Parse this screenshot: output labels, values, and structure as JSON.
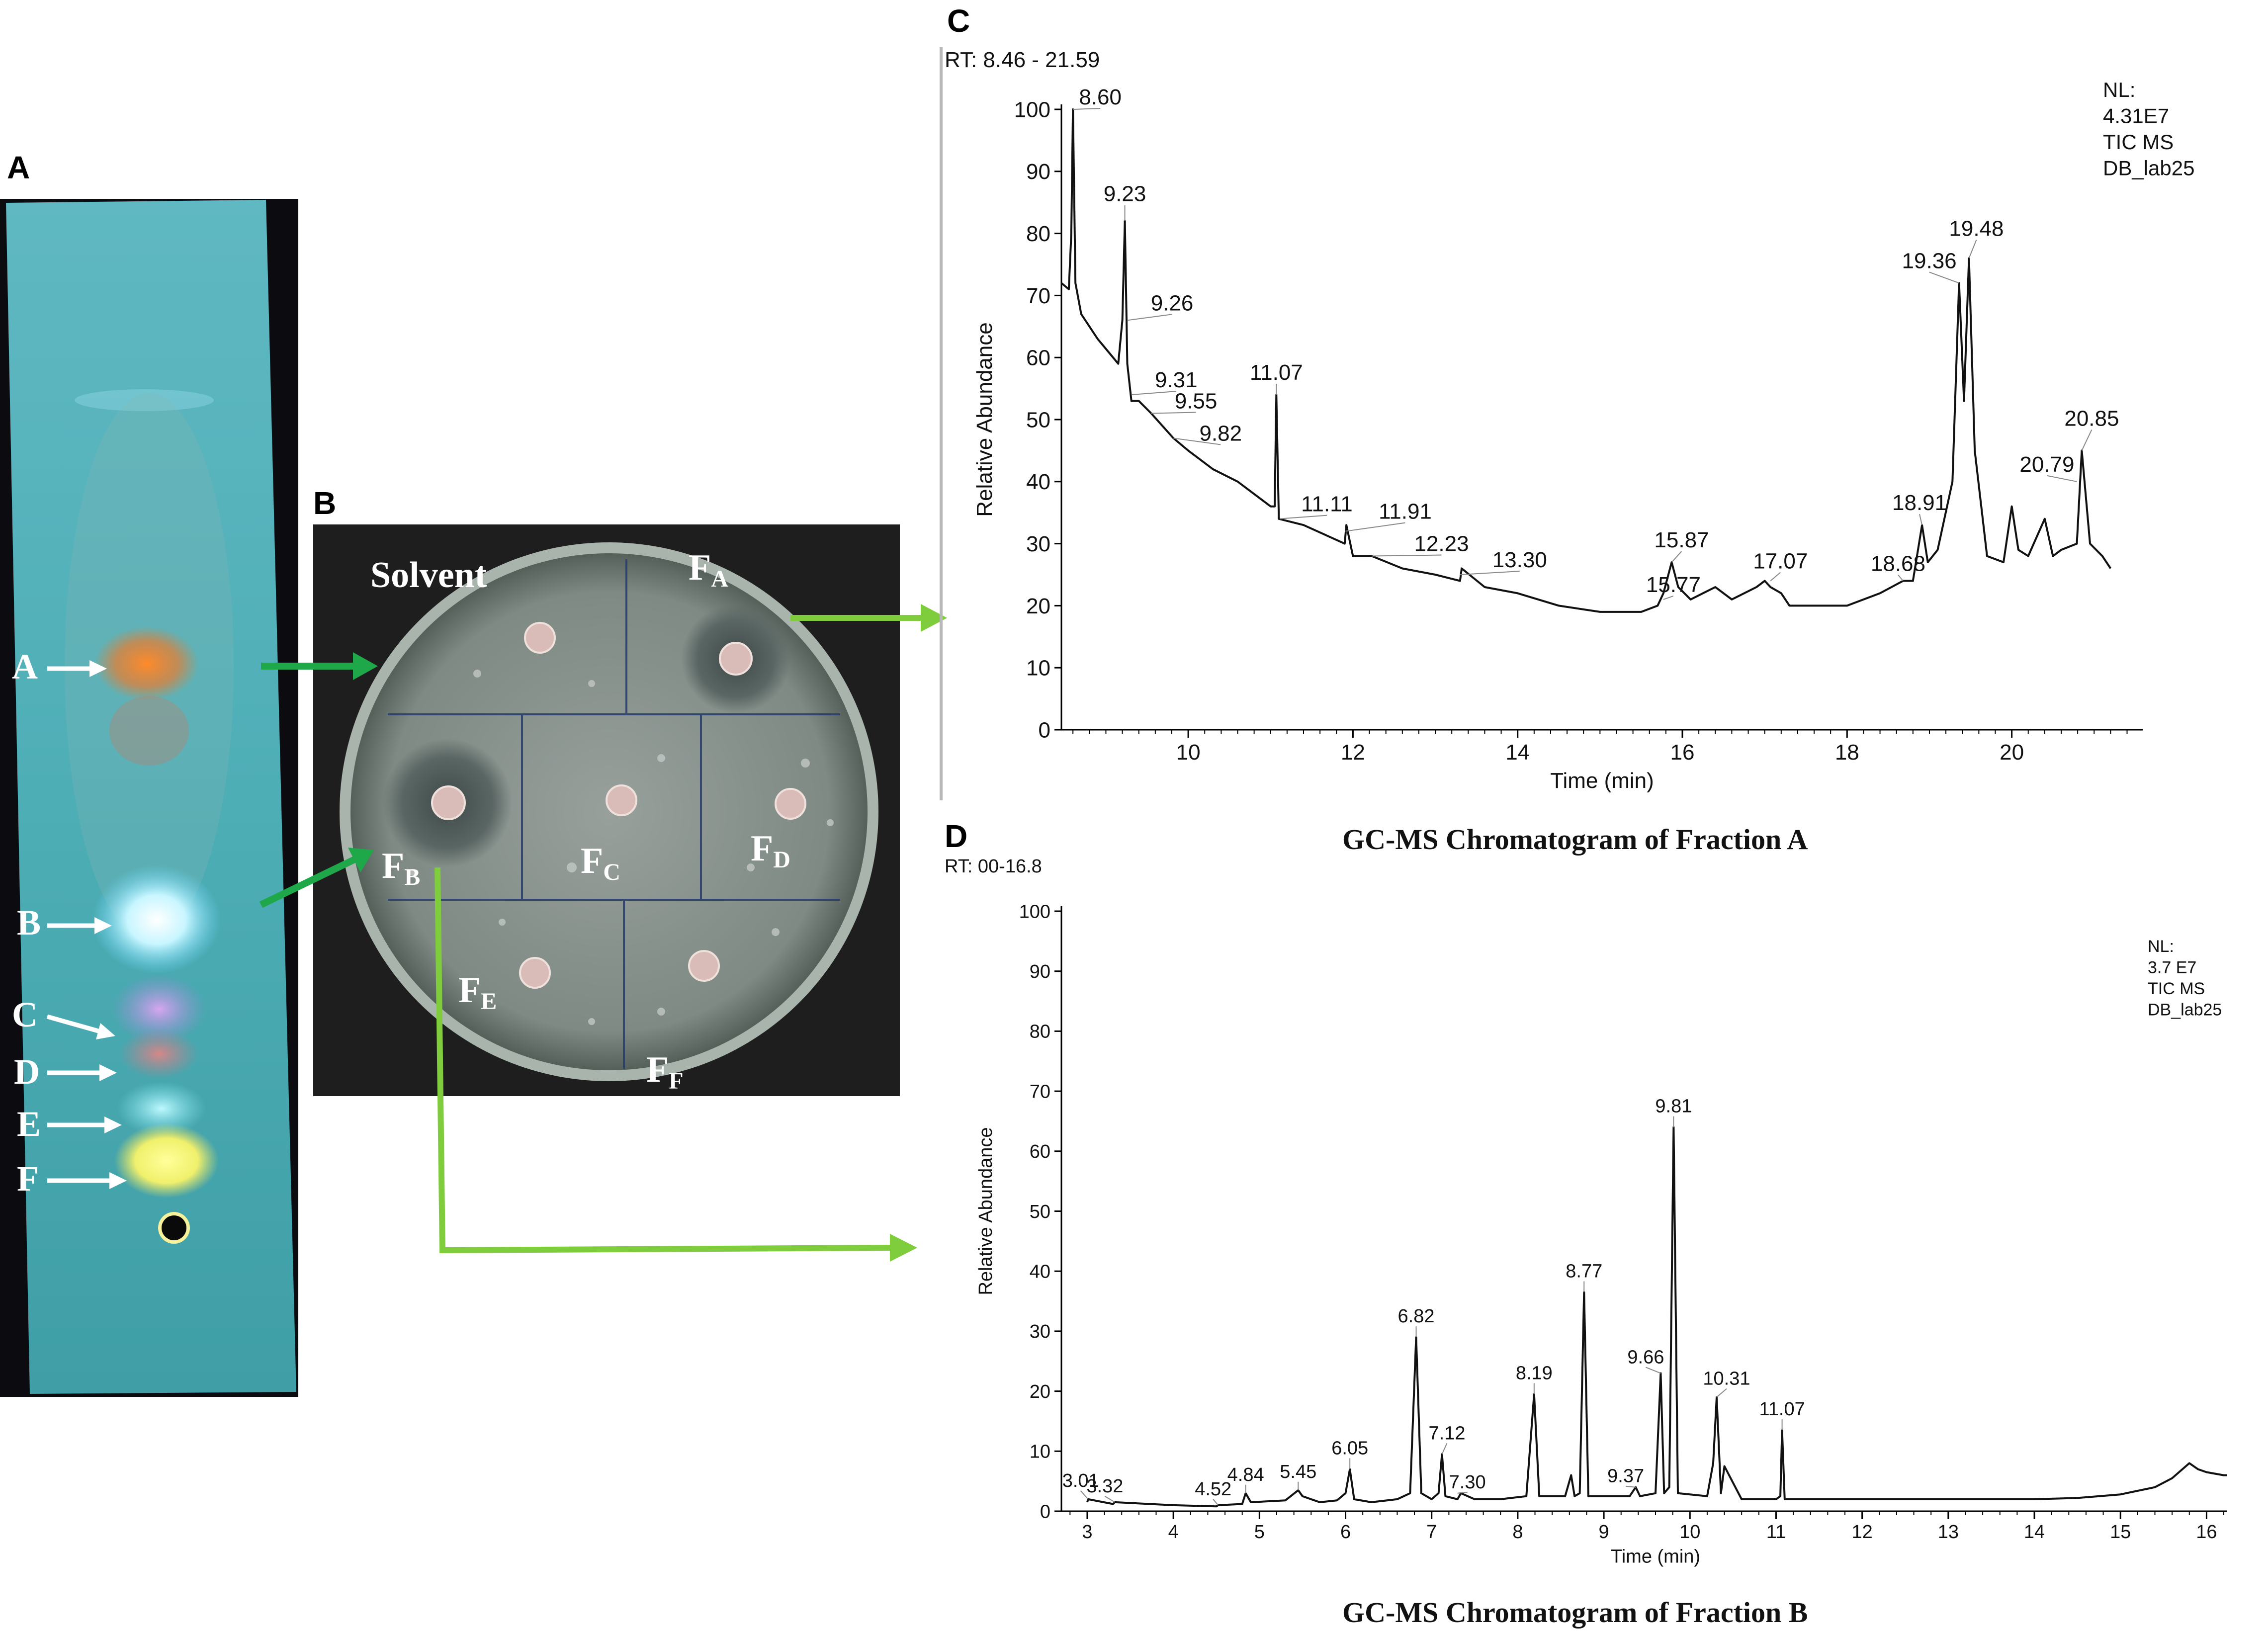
{
  "panels": {
    "a": "A",
    "b": "B",
    "c": "C",
    "d": "D"
  },
  "tlc": {
    "spots": [
      "A",
      "B",
      "C",
      "D",
      "E",
      "F"
    ],
    "colors": {
      "background": "#4fb2b8",
      "spot_a": "#e8843a",
      "spot_b": "#e8ffff",
      "spot_c": "#c89ae8",
      "spot_d": "#d08a8a",
      "spot_e": "#8ef0f4",
      "spot_f": "#f3f37a"
    }
  },
  "plate": {
    "solvent_label": "Solvent",
    "fractions": [
      {
        "main": "F",
        "sub": "A"
      },
      {
        "main": "F",
        "sub": "B"
      },
      {
        "main": "F",
        "sub": "C"
      },
      {
        "main": "F",
        "sub": "D"
      },
      {
        "main": "F",
        "sub": "E"
      },
      {
        "main": "F",
        "sub": "F"
      }
    ],
    "colors": {
      "agar": "#8a938e",
      "dish_rim": "#c6d0c6",
      "backdrop": "#1c1c1c"
    }
  },
  "arrows": {
    "dark_green": "#1ea84a",
    "light_green": "#7fcd3c"
  },
  "captions": {
    "c": "GC-MS Chromatogram of Fraction A",
    "d": "GC-MS Chromatogram of Fraction B"
  },
  "chart_data": [
    {
      "type": "line",
      "id": "fraction-a",
      "rt_label": "RT: 8.46 - 21.59",
      "info": [
        "NL:",
        "4.31E7",
        "TIC  MS",
        "DB_lab25"
      ],
      "xlabel": "Time (min)",
      "ylabel": "Relative Abundance",
      "xlim": [
        8.46,
        21.59
      ],
      "ylim": [
        0,
        100
      ],
      "xticks": [
        10,
        12,
        14,
        16,
        18,
        20
      ],
      "yticks": [
        0,
        10,
        20,
        30,
        40,
        50,
        60,
        70,
        80,
        90,
        100
      ],
      "series": [
        {
          "x": [
            8.46,
            8.55,
            8.58,
            8.6,
            8.63,
            8.7,
            8.9,
            9.15,
            9.2,
            9.23,
            9.26,
            9.31,
            9.4,
            9.55,
            9.82,
            10.0,
            10.3,
            10.6,
            11.0,
            11.05,
            11.07,
            11.1,
            11.4,
            11.9,
            11.92,
            12.0,
            12.23,
            12.6,
            13.0,
            13.3,
            13.32,
            13.6,
            14.0,
            14.5,
            15.0,
            15.5,
            15.7,
            15.77,
            15.87,
            15.95,
            16.1,
            16.4,
            16.6,
            16.9,
            17.0,
            17.07,
            17.2,
            17.3,
            17.6,
            18.0,
            18.4,
            18.68,
            18.8,
            18.91,
            18.98,
            19.1,
            19.28,
            19.36,
            19.42,
            19.48,
            19.55,
            19.7,
            19.9,
            20.0,
            20.08,
            20.2,
            20.4,
            20.5,
            20.6,
            20.79,
            20.85,
            20.95,
            21.1,
            21.2
          ],
          "y": [
            72,
            71,
            80,
            100,
            72,
            67,
            63,
            59,
            66,
            82,
            59,
            53,
            53,
            51,
            47,
            45,
            42,
            40,
            36,
            36,
            54,
            34,
            33,
            30,
            33,
            28,
            28,
            26,
            25,
            24,
            26,
            23,
            22,
            20,
            19,
            19,
            20,
            22,
            27,
            23,
            21,
            23,
            21,
            23,
            24,
            23,
            22,
            20,
            20,
            20,
            22,
            24,
            24,
            33,
            27,
            29,
            40,
            72,
            53,
            76,
            45,
            28,
            27,
            36,
            29,
            28,
            34,
            28,
            29,
            30,
            45,
            30,
            28,
            26
          ]
        }
      ],
      "peak_labels": [
        {
          "label": "8.60",
          "x": 8.6,
          "y": 100
        },
        {
          "label": "9.23",
          "x": 9.23,
          "y": 82
        },
        {
          "label": "9.26",
          "x": 9.26,
          "y": 66
        },
        {
          "label": "9.31",
          "x": 9.31,
          "y": 54
        },
        {
          "label": "9.55",
          "x": 9.55,
          "y": 51
        },
        {
          "label": "9.82",
          "x": 9.82,
          "y": 47
        },
        {
          "label": "11.07",
          "x": 11.07,
          "y": 54
        },
        {
          "label": "11.11",
          "x": 11.11,
          "y": 34
        },
        {
          "label": "11.91",
          "x": 11.91,
          "y": 32
        },
        {
          "label": "12.23",
          "x": 12.23,
          "y": 28
        },
        {
          "label": "13.30",
          "x": 13.3,
          "y": 25
        },
        {
          "label": "15.77",
          "x": 15.77,
          "y": 21
        },
        {
          "label": "15.87",
          "x": 15.87,
          "y": 27
        },
        {
          "label": "17.07",
          "x": 17.07,
          "y": 24
        },
        {
          "label": "18.68",
          "x": 18.68,
          "y": 24
        },
        {
          "label": "18.91",
          "x": 18.91,
          "y": 33
        },
        {
          "label": "19.36",
          "x": 19.36,
          "y": 72
        },
        {
          "label": "19.48",
          "x": 19.48,
          "y": 76
        },
        {
          "label": "20.79",
          "x": 20.79,
          "y": 40
        },
        {
          "label": "20.85",
          "x": 20.85,
          "y": 45
        }
      ]
    },
    {
      "type": "line",
      "id": "fraction-b",
      "rt_label": "RT:  00-16.8",
      "info": [
        "NL:",
        "3.7  E7",
        "TIC  MS",
        "DB_lab25"
      ],
      "xlabel": "Time (min)",
      "ylabel": "Relative Abundance",
      "xlim": [
        2.7,
        16.5
      ],
      "ylim": [
        0,
        100
      ],
      "xticks": [
        3,
        4,
        5,
        6,
        7,
        8,
        9,
        10,
        11,
        12,
        13,
        14,
        15,
        16
      ],
      "yticks": [
        0,
        10,
        20,
        30,
        40,
        50,
        60,
        70,
        80,
        90,
        100
      ],
      "series": [
        {
          "x": [
            3.0,
            3.01,
            3.3,
            3.32,
            4.0,
            4.5,
            4.52,
            4.8,
            4.84,
            4.9,
            5.3,
            5.45,
            5.5,
            5.6,
            5.7,
            5.9,
            6.0,
            6.05,
            6.1,
            6.3,
            6.6,
            6.75,
            6.82,
            6.88,
            7.0,
            7.08,
            7.12,
            7.16,
            7.3,
            7.34,
            7.5,
            7.8,
            8.1,
            8.19,
            8.25,
            8.55,
            8.62,
            8.66,
            8.72,
            8.77,
            8.82,
            9.3,
            9.37,
            9.42,
            9.6,
            9.66,
            9.7,
            9.76,
            9.81,
            9.86,
            10.2,
            10.27,
            10.31,
            10.36,
            10.4,
            10.6,
            11.0,
            11.05,
            11.07,
            11.1,
            11.5,
            12.0,
            13.0,
            14.0,
            14.5,
            15.0,
            15.4,
            15.6,
            15.8,
            15.9,
            16.0,
            16.2,
            16.4
          ],
          "y": [
            1.5,
            2.0,
            1.2,
            1.5,
            1.0,
            0.8,
            1.0,
            1.2,
            3.0,
            1.5,
            1.8,
            3.5,
            2.5,
            2.0,
            1.5,
            1.8,
            3.0,
            7.0,
            2.0,
            1.5,
            2.0,
            3.0,
            29,
            3.0,
            2.0,
            3.0,
            9.5,
            2.5,
            2.0,
            3.0,
            2.0,
            2.0,
            2.5,
            19.5,
            2.5,
            2.5,
            6.0,
            2.5,
            3.0,
            36.5,
            2.5,
            2.5,
            4.0,
            2.5,
            3.0,
            23,
            3.0,
            4.0,
            64,
            3.0,
            2.5,
            8.0,
            19,
            3.0,
            7.5,
            2.0,
            2.0,
            2.5,
            13.5,
            2.0,
            2.0,
            2.0,
            2.0,
            2.0,
            2.2,
            2.8,
            4.0,
            5.5,
            8.0,
            7.0,
            6.5,
            6.0,
            6.0
          ]
        }
      ],
      "peak_labels": [
        {
          "label": "3.01",
          "x": 3.01,
          "y": 2.0
        },
        {
          "label": "3.32",
          "x": 3.32,
          "y": 1.5
        },
        {
          "label": "4.52",
          "x": 4.52,
          "y": 1.0
        },
        {
          "label": "4.84",
          "x": 4.84,
          "y": 3.0
        },
        {
          "label": "5.45",
          "x": 5.45,
          "y": 3.5
        },
        {
          "label": "6.05",
          "x": 6.05,
          "y": 7.0
        },
        {
          "label": "6.82",
          "x": 6.82,
          "y": 29
        },
        {
          "label": "7.12",
          "x": 7.12,
          "y": 9.5
        },
        {
          "label": "7.30",
          "x": 7.3,
          "y": 3.0
        },
        {
          "label": "8.19",
          "x": 8.19,
          "y": 19.5
        },
        {
          "label": "8.77",
          "x": 8.77,
          "y": 36.5
        },
        {
          "label": "9.37",
          "x": 9.37,
          "y": 4.0
        },
        {
          "label": "9.66",
          "x": 9.66,
          "y": 23
        },
        {
          "label": "9.81",
          "x": 9.81,
          "y": 64
        },
        {
          "label": "10.31",
          "x": 10.31,
          "y": 19
        },
        {
          "label": "11.07",
          "x": 11.07,
          "y": 13.5
        }
      ]
    }
  ]
}
